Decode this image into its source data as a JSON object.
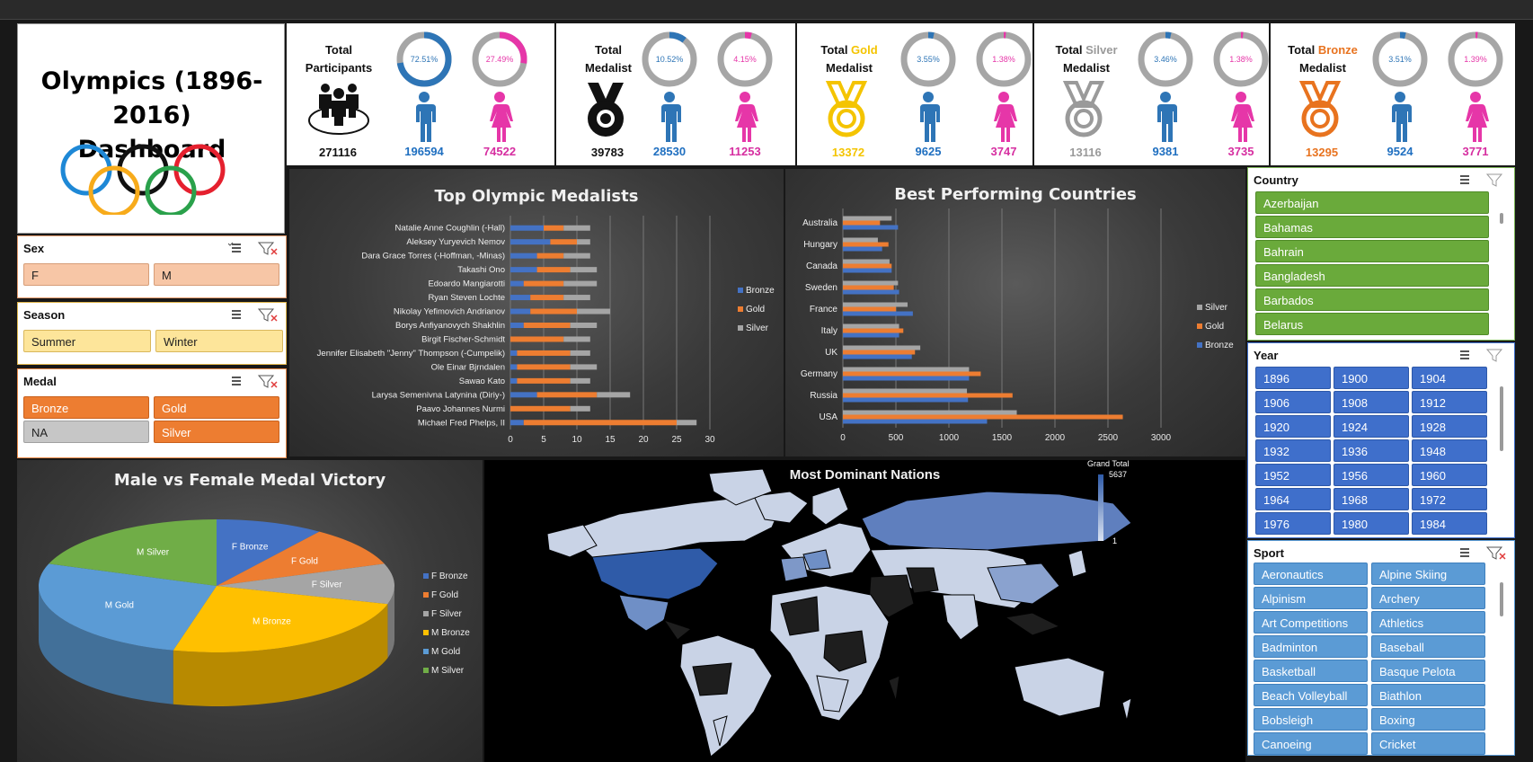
{
  "title": "Olympics (1896-2016)\nDashboard",
  "stats": [
    {
      "label": "Total\nParticipants",
      "total": "271116",
      "male": "196594",
      "female": "74522",
      "male_pct": "72.51%",
      "female_pct": "27.49%",
      "male_frac": 0.7251,
      "female_frac": 0.2749,
      "medal": "group",
      "color": "#111111"
    },
    {
      "label": "Total\nMedalist",
      "total": "39783",
      "male": "28530",
      "female": "11253",
      "male_pct": "10.52%",
      "female_pct": "4.15%",
      "male_frac": 0.1052,
      "female_frac": 0.0415,
      "medal": "black",
      "color": "#111111"
    },
    {
      "label_pre": "Total ",
      "label_hl": "Gold",
      "label_post": "Medalist",
      "total": "13372",
      "male": "9625",
      "female": "3747",
      "male_pct": "3.55%",
      "female_pct": "1.38%",
      "male_frac": 0.0355,
      "female_frac": 0.0138,
      "medal": "gold",
      "color": "#f4c400"
    },
    {
      "label_pre": "Total ",
      "label_hl": "Silver",
      "label_post": "Medalist",
      "total": "13116",
      "male": "9381",
      "female": "3735",
      "male_pct": "3.46%",
      "female_pct": "1.38%",
      "male_frac": 0.0346,
      "female_frac": 0.0138,
      "medal": "silver",
      "color": "#9a9a9a"
    },
    {
      "label_pre": "Total ",
      "label_hl": "Bronze",
      "label_post": "Medalist",
      "total": "13295",
      "male": "9524",
      "female": "3771",
      "male_pct": "3.51%",
      "female_pct": "1.39%",
      "male_frac": 0.0351,
      "female_frac": 0.0139,
      "medal": "bronze",
      "color": "#e8731f"
    }
  ],
  "colors": {
    "male": "#2e75b6",
    "female": "#e636a8",
    "gold": "#f4c400",
    "silver": "#a6a6a6",
    "bronze": "#e8731f",
    "male_text": "#1f6fc0",
    "female_text": "#d62ea0"
  },
  "slicers": {
    "sex": {
      "title": "Sex",
      "items": [
        "F",
        "M"
      ]
    },
    "season": {
      "title": "Season",
      "items": [
        "Summer",
        "Winter"
      ]
    },
    "medal": {
      "title": "Medal",
      "items": [
        "Bronze",
        "Gold",
        "NA",
        "Silver"
      ]
    },
    "country": {
      "title": "Country",
      "items": [
        "Azerbaijan",
        "Bahamas",
        "Bahrain",
        "Bangladesh",
        "Barbados",
        "Belarus"
      ]
    },
    "year": {
      "title": "Year",
      "items": [
        "1896",
        "1900",
        "1904",
        "1906",
        "1908",
        "1912",
        "1920",
        "1924",
        "1928",
        "1932",
        "1936",
        "1948",
        "1952",
        "1956",
        "1960",
        "1964",
        "1968",
        "1972",
        "1976",
        "1980",
        "1984"
      ]
    },
    "sport": {
      "title": "Sport",
      "items": [
        "Aeronautics",
        "Alpine Skiing",
        "Alpinism",
        "Archery",
        "Art Competitions",
        "Athletics",
        "Badminton",
        "Baseball",
        "Basketball",
        "Basque Pelota",
        "Beach Volleyball",
        "Biathlon",
        "Bobsleigh",
        "Boxing",
        "Canoeing",
        "Cricket"
      ]
    }
  },
  "chart_data": [
    {
      "type": "bar",
      "orientation": "horizontal",
      "stacked": true,
      "title": "Top Olympic Medalists",
      "categories": [
        "Natalie Anne Coughlin (-Hall)",
        "Aleksey Yuryevich Nemov",
        "Dara Grace Torres (-Hoffman, -Minas)",
        "Takashi Ono",
        "Edoardo Mangiarotti",
        "Ryan Steven Lochte",
        "Nikolay Yefimovich Andrianov",
        "Borys Anfiyanovych Shakhlin",
        "Birgit Fischer-Schmidt",
        "Jennifer Elisabeth \"Jenny\" Thompson (-Cumpelik)",
        "Ole Einar Bjrndalen",
        "Sawao Kato",
        "Larysa Semenivna Latynina (Diriy-)",
        "Paavo Johannes Nurmi",
        "Michael Fred Phelps, II"
      ],
      "series": [
        {
          "name": "Bronze",
          "color": "#4472c4",
          "values": [
            5,
            6,
            4,
            4,
            2,
            3,
            3,
            2,
            0,
            1,
            1,
            1,
            4,
            0,
            2
          ]
        },
        {
          "name": "Gold",
          "color": "#ed7d31",
          "values": [
            3,
            4,
            4,
            5,
            6,
            5,
            7,
            7,
            8,
            8,
            8,
            8,
            9,
            9,
            23
          ]
        },
        {
          "name": "Silver",
          "color": "#a5a5a5",
          "values": [
            4,
            2,
            4,
            4,
            5,
            4,
            5,
            4,
            4,
            3,
            4,
            3,
            5,
            3,
            3
          ]
        }
      ],
      "xticks": [
        0,
        5,
        10,
        15,
        20,
        25,
        30
      ],
      "xlim": [
        0,
        30
      ],
      "legend": "right"
    },
    {
      "type": "bar",
      "orientation": "horizontal",
      "grouped": true,
      "title": "Best Performing Countries",
      "categories": [
        "Australia",
        "Hungary",
        "Canada",
        "Sweden",
        "France",
        "Italy",
        "UK",
        "Germany",
        "Russia",
        "USA"
      ],
      "series": [
        {
          "name": "Silver",
          "color": "#a5a5a5",
          "values": [
            460,
            330,
            440,
            520,
            610,
            530,
            730,
            1190,
            1170,
            1640
          ]
        },
        {
          "name": "Gold",
          "color": "#ed7d31",
          "values": [
            350,
            430,
            460,
            480,
            500,
            570,
            680,
            1300,
            1600,
            2640
          ]
        },
        {
          "name": "Bronze",
          "color": "#4472c4",
          "values": [
            520,
            370,
            460,
            530,
            660,
            530,
            650,
            1190,
            1180,
            1360
          ]
        }
      ],
      "xticks": [
        0,
        500,
        1000,
        1500,
        2000,
        2500,
        3000
      ],
      "xlim": [
        0,
        3000
      ],
      "legend": "right"
    },
    {
      "type": "pie",
      "title": "Male vs Female Medal Victory",
      "labels": [
        "F Bronze",
        "F Gold",
        "F Silver",
        "M Bronze",
        "M Gold",
        "M Silver"
      ],
      "values": [
        1,
        1,
        1,
        2.5,
        2.7,
        2
      ],
      "colors": [
        "#4472c4",
        "#ed7d31",
        "#a5a5a5",
        "#ffc000",
        "#5b9bd5",
        "#70ad47"
      ],
      "legend": "right"
    },
    {
      "type": "map",
      "title": "Most Dominant Nations",
      "legend_title": "Grand Total",
      "legend_max": "5637",
      "legend_min": "1"
    }
  ]
}
